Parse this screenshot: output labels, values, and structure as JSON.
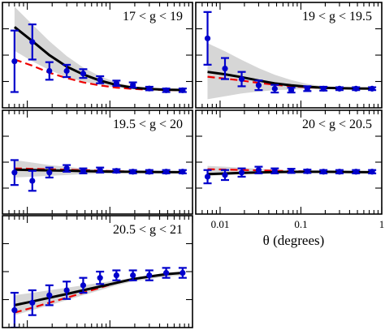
{
  "chart_data": [
    {
      "type": "line",
      "title": "17 < g < 19",
      "x": [
        0.007,
        0.0115,
        0.0185,
        0.03,
        0.0475,
        0.076,
        0.12,
        0.19,
        0.3,
        0.48,
        0.76
      ],
      "series": [
        {
          "kind": "points",
          "values": [
            0.33,
            0.55,
            0.22,
            0.22,
            0.19,
            0.12,
            0.08,
            0.06,
            0.02,
            0.0,
            0.0
          ],
          "yerr": [
            0.35,
            0.2,
            0.1,
            0.07,
            0.05,
            0.04,
            0.03,
            0.03,
            0.02,
            0.02,
            0.02
          ]
        },
        {
          "kind": "model-solid",
          "values": [
            0.72,
            0.56,
            0.4,
            0.27,
            0.18,
            0.11,
            0.06,
            0.03,
            0.015,
            0.007,
            0.003
          ]
        },
        {
          "kind": "model-dashed",
          "values": [
            0.35,
            0.28,
            0.2,
            0.14,
            0.09,
            0.055,
            0.03,
            0.015,
            0.007,
            0.003,
            0.001
          ]
        },
        {
          "kind": "band",
          "lower": [
            0.45,
            0.33,
            0.23,
            0.15,
            0.1,
            0.06,
            0.03,
            0.015,
            0.007,
            0.003,
            0.001
          ],
          "upper": [
            0.95,
            0.75,
            0.56,
            0.39,
            0.26,
            0.16,
            0.09,
            0.045,
            0.022,
            0.011,
            0.005
          ]
        }
      ],
      "xlim": [
        0.005,
        1.0
      ],
      "ylim": [
        -0.2,
        1.0
      ]
    },
    {
      "type": "line",
      "title": "19 < g < 19.5",
      "x": [
        0.007,
        0.0115,
        0.0185,
        0.03,
        0.0475,
        0.076,
        0.12,
        0.19,
        0.3,
        0.48,
        0.76
      ],
      "series": [
        {
          "kind": "points",
          "values": [
            1.05,
            0.42,
            0.2,
            0.07,
            0.0,
            -0.03,
            0.0,
            0.0,
            0.0,
            0.0,
            0.0
          ],
          "yerr": [
            0.55,
            0.22,
            0.15,
            0.1,
            0.08,
            0.05,
            0.05,
            0.04,
            0.03,
            0.03,
            0.03
          ]
        },
        {
          "kind": "model-solid",
          "values": [
            0.35,
            0.3,
            0.24,
            0.17,
            0.11,
            0.07,
            0.04,
            0.02,
            0.01,
            0.005,
            0.002
          ]
        },
        {
          "kind": "model-dashed",
          "values": [
            0.25,
            0.21,
            0.17,
            0.12,
            0.08,
            0.05,
            0.03,
            0.015,
            0.007,
            0.003,
            0.001
          ]
        },
        {
          "kind": "band",
          "lower": [
            -0.22,
            -0.16,
            -0.1,
            -0.06,
            -0.03,
            -0.02,
            -0.01,
            -0.005,
            -0.002,
            -0.001,
            0.0
          ],
          "upper": [
            0.95,
            0.78,
            0.6,
            0.43,
            0.29,
            0.18,
            0.1,
            0.05,
            0.025,
            0.012,
            0.006
          ]
        }
      ],
      "xlim": [
        0.005,
        1.0
      ],
      "ylim": [
        -0.4,
        1.8
      ]
    },
    {
      "type": "line",
      "title": "19.5 < g < 20",
      "x": [
        0.007,
        0.0115,
        0.0185,
        0.03,
        0.0475,
        0.076,
        0.12,
        0.19,
        0.3,
        0.48,
        0.76
      ],
      "series": [
        {
          "kind": "points",
          "values": [
            0.0,
            -0.1,
            0.0,
            0.05,
            0.02,
            0.03,
            0.02,
            0.01,
            0.01,
            0.01,
            0.01
          ],
          "yerr": [
            0.15,
            0.12,
            0.06,
            0.04,
            0.03,
            0.03,
            0.02,
            0.02,
            0.02,
            0.02,
            0.02
          ]
        },
        {
          "kind": "model-solid",
          "values": [
            0.035,
            0.03,
            0.026,
            0.022,
            0.018,
            0.014,
            0.011,
            0.009,
            0.007,
            0.005,
            0.004
          ]
        },
        {
          "kind": "model-dashed",
          "values": [
            0.05,
            0.045,
            0.04,
            0.034,
            0.028,
            0.022,
            0.017,
            0.012,
            0.009,
            0.006,
            0.004
          ]
        },
        {
          "kind": "band",
          "lower": [
            -0.06,
            -0.05,
            -0.04,
            -0.03,
            -0.02,
            -0.015,
            -0.01,
            -0.006,
            -0.004,
            -0.002,
            -0.001
          ],
          "upper": [
            0.15,
            0.12,
            0.09,
            0.07,
            0.05,
            0.035,
            0.025,
            0.018,
            0.012,
            0.008,
            0.005
          ]
        }
      ],
      "xlim": [
        0.005,
        1.0
      ],
      "ylim": [
        -0.5,
        0.75
      ]
    },
    {
      "type": "line",
      "title": "20 < g < 20.5",
      "x": [
        0.007,
        0.0115,
        0.0185,
        0.03,
        0.0475,
        0.076,
        0.12,
        0.19,
        0.3,
        0.48,
        0.76
      ],
      "series": [
        {
          "kind": "points",
          "values": [
            -0.05,
            -0.03,
            0.0,
            0.03,
            0.02,
            0.02,
            0.015,
            0.01,
            0.01,
            0.01,
            0.01
          ],
          "yerr": [
            0.08,
            0.06,
            0.05,
            0.04,
            0.03,
            0.025,
            0.02,
            0.02,
            0.02,
            0.02,
            0.02
          ]
        },
        {
          "kind": "model-solid",
          "values": [
            -0.02,
            -0.012,
            -0.005,
            0.001,
            0.005,
            0.008,
            0.009,
            0.009,
            0.008,
            0.006,
            0.004
          ]
        },
        {
          "kind": "model-dashed",
          "values": [
            0.04,
            0.036,
            0.031,
            0.026,
            0.021,
            0.017,
            0.013,
            0.01,
            0.008,
            0.006,
            0.004
          ]
        },
        {
          "kind": "band",
          "lower": [
            -0.04,
            -0.03,
            -0.02,
            -0.013,
            -0.008,
            -0.005,
            -0.003,
            -0.002,
            -0.001,
            0.0,
            0.0
          ],
          "upper": [
            0.08,
            0.07,
            0.06,
            0.045,
            0.035,
            0.026,
            0.019,
            0.014,
            0.01,
            0.007,
            0.005
          ]
        }
      ],
      "xlim": [
        0.005,
        1.0
      ],
      "ylim": [
        -0.5,
        0.75
      ],
      "xlabel": "θ (degrees)",
      "xticks": [
        {
          "value": 0.01,
          "label": "0.01"
        },
        {
          "value": 0.1,
          "label": "0.1"
        },
        {
          "value": 1.0,
          "label": "1"
        }
      ]
    },
    {
      "type": "line",
      "title": "20.5 < g < 21",
      "x": [
        0.007,
        0.0115,
        0.0185,
        0.03,
        0.0475,
        0.076,
        0.12,
        0.19,
        0.3,
        0.48,
        0.76
      ],
      "series": [
        {
          "kind": "points",
          "values": [
            -0.08,
            -0.05,
            -0.02,
            0.0,
            0.02,
            0.05,
            0.06,
            0.06,
            0.06,
            0.07,
            0.07
          ],
          "yerr": [
            0.07,
            0.05,
            0.04,
            0.035,
            0.03,
            0.025,
            0.02,
            0.02,
            0.02,
            0.02,
            0.02
          ]
        },
        {
          "kind": "model-solid",
          "values": [
            -0.06,
            -0.045,
            -0.03,
            -0.015,
            0.0,
            0.015,
            0.03,
            0.045,
            0.055,
            0.065,
            0.07
          ]
        },
        {
          "kind": "model-dashed",
          "values": [
            -0.09,
            -0.07,
            -0.05,
            -0.03,
            -0.01,
            0.01,
            0.03,
            0.045,
            0.055,
            0.065,
            0.07
          ]
        },
        {
          "kind": "band",
          "lower": [
            -0.1,
            -0.08,
            -0.06,
            -0.04,
            -0.02,
            0.0,
            0.02,
            0.035,
            0.045,
            0.055,
            0.06
          ],
          "upper": [
            -0.02,
            -0.01,
            0.0,
            0.01,
            0.02,
            0.03,
            0.04,
            0.05,
            0.06,
            0.07,
            0.075
          ]
        }
      ],
      "xlim": [
        0.005,
        1.0
      ],
      "ylim": [
        -0.15,
        0.3
      ]
    }
  ],
  "colors": {
    "points": "#0000cc",
    "model_solid": "#000000",
    "model_dashed": "#ee0000",
    "band": "#d6d6d6"
  }
}
